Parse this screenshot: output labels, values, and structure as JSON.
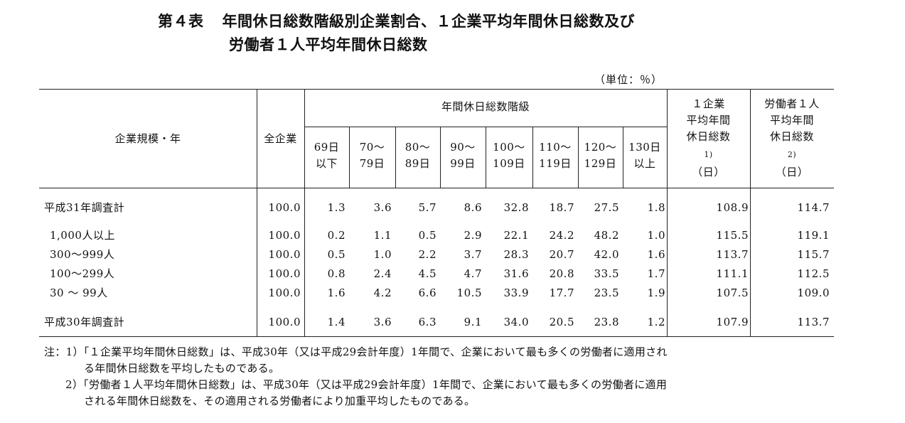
{
  "title": {
    "number": "第４表",
    "line1": "年間休日総数階級別企業割合、１企業平均年間休日総数及び",
    "line2": "労働者１人平均年間休日総数"
  },
  "unit": "（単位：％）",
  "headers": {
    "row_header": "企業規模・年",
    "all": "全企業",
    "group": "年間休日総数階級",
    "classes": [
      [
        "69日",
        "以下"
      ],
      [
        "70～",
        "79日"
      ],
      [
        "80～",
        "89日"
      ],
      [
        "90～",
        "99日"
      ],
      [
        "100～",
        "109日"
      ],
      [
        "110～",
        "119日"
      ],
      [
        "120～",
        "129日"
      ],
      [
        "130日",
        "以上"
      ]
    ],
    "per_company": [
      "１企業",
      "平均年間",
      "休日総数",
      "1)",
      "（日）"
    ],
    "per_worker": [
      "労働者１人",
      "平均年間",
      "休日総数",
      "2)",
      "（日）"
    ]
  },
  "rows": [
    {
      "label": "平成31年調査計",
      "values": [
        "100.0",
        "1.3",
        "3.6",
        "5.7",
        "8.6",
        "32.8",
        "18.7",
        "27.5",
        "1.8",
        "108.9",
        "114.7"
      ]
    },
    {
      "label": "1,000人以上",
      "values": [
        "100.0",
        "0.2",
        "1.1",
        "0.5",
        "2.9",
        "22.1",
        "24.2",
        "48.2",
        "1.0",
        "115.5",
        "119.1"
      ]
    },
    {
      "label": "300～999人",
      "values": [
        "100.0",
        "0.5",
        "1.0",
        "2.2",
        "3.7",
        "28.3",
        "20.7",
        "42.0",
        "1.6",
        "113.7",
        "115.7"
      ]
    },
    {
      "label": "100～299人",
      "values": [
        "100.0",
        "0.8",
        "2.4",
        "4.5",
        "4.7",
        "31.6",
        "20.8",
        "33.5",
        "1.7",
        "111.1",
        "112.5"
      ]
    },
    {
      "label": "30 ～ 99人",
      "values": [
        "100.0",
        "1.6",
        "4.2",
        "6.6",
        "10.5",
        "33.9",
        "17.7",
        "23.5",
        "1.9",
        "107.5",
        "109.0"
      ]
    },
    {
      "label": "平成30年調査計",
      "values": [
        "100.0",
        "1.4",
        "3.6",
        "6.3",
        "9.1",
        "34.0",
        "20.5",
        "23.8",
        "1.2",
        "107.9",
        "113.7"
      ]
    }
  ],
  "notes": {
    "note1_a": "注：1）「１企業平均年間休日総数」は、平成30年（又は平成29会計年度）1年間で、企業において最も多くの労働者に適用され",
    "note1_b": "る年間休日総数を平均したものである。",
    "note2_a": "2）「労働者１人平均年間休日総数」は、平成30年（又は平成29会計年度）1年間で、企業において最も多くの労働者に適用",
    "note2_b": "される年間休日総数を、その適用される労働者により加重平均したものである。"
  }
}
